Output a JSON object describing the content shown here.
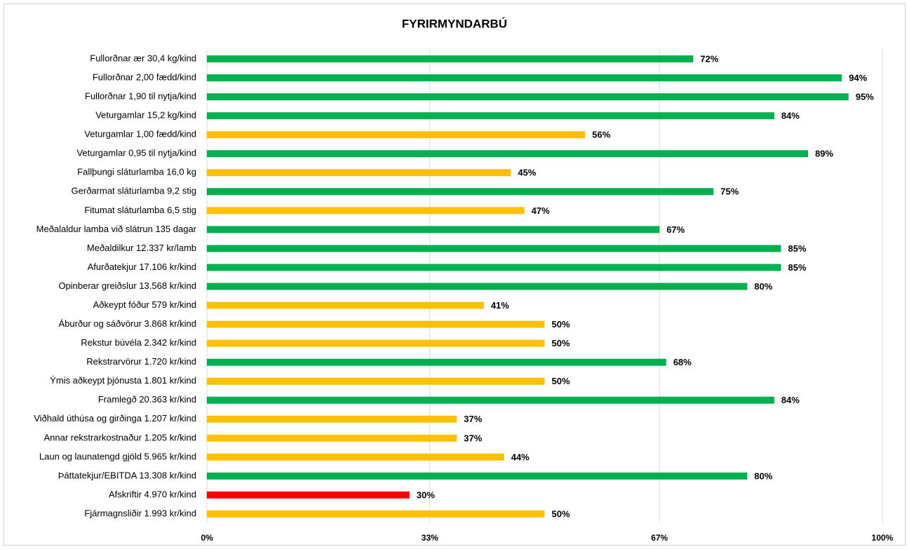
{
  "chart_data": {
    "type": "barh",
    "title": "FYRIRMYNDARBÚ",
    "categories": [
      "Fullorðnar ær 30,4 kg/kind",
      "Fullorðnar 2,00 fædd/kind",
      "Fullorðnar 1,90 til nytja/kind",
      "Veturgamlar 15,2 kg/kind",
      "Veturgamlar 1,00 fædd/kind",
      "Veturgamlar 0,95 til nytja/kind",
      "Fallþungi sláturlamba 16,0 kg",
      "Gerðarmat sláturlamba 9,2 stig",
      "Fitumat sláturlamba 6,5 stig",
      "Meðalaldur lamba við slátrun 135 dagar",
      "Meðaldilkur 12.337 kr/lamb",
      "Afurðatekjur 17.106 kr/kind",
      "Opinberar greiðslur 13.568 kr/kind",
      "Aðkeypt fóður 579 kr/kind",
      "Áburður og sáðvörur 3.868 kr/kind",
      "Rekstur búvéla 2.342 kr/kind",
      "Rekstrarvörur 1.720 kr/kind",
      "Ýmis aðkeypt þjónusta 1.801 kr/kind",
      "Framlegð 20.363 kr/kind",
      "Viðhald úthúsa og girðinga 1.207 kr/kind",
      "Annar rekstrarkostnaður 1.205 kr/kind",
      "Laun og launatengd gjöld 5.965 kr/kind",
      "Þáttatekjur/EBITDA 13.308 kr/kind",
      "Afskriftir 4.970 kr/kind",
      "Fjármagnsliðir 1.993 kr/kind"
    ],
    "values": [
      72,
      94,
      95,
      84,
      56,
      89,
      45,
      75,
      47,
      67,
      85,
      85,
      80,
      41,
      50,
      50,
      68,
      50,
      84,
      37,
      37,
      44,
      80,
      30,
      50
    ],
    "value_labels": [
      "72%",
      "94%",
      "95%",
      "84%",
      "56%",
      "89%",
      "45%",
      "75%",
      "47%",
      "67%",
      "85%",
      "85%",
      "80%",
      "41%",
      "50%",
      "50%",
      "68%",
      "50%",
      "84%",
      "37%",
      "37%",
      "44%",
      "80%",
      "30%",
      "50%"
    ],
    "colors": [
      "#00b050",
      "#00b050",
      "#00b050",
      "#00b050",
      "#ffc000",
      "#00b050",
      "#ffc000",
      "#00b050",
      "#ffc000",
      "#00b050",
      "#00b050",
      "#00b050",
      "#00b050",
      "#ffc000",
      "#ffc000",
      "#ffc000",
      "#00b050",
      "#ffc000",
      "#00b050",
      "#ffc000",
      "#ffc000",
      "#ffc000",
      "#00b050",
      "#ff0000",
      "#ffc000"
    ],
    "xlim": [
      0,
      100
    ],
    "xticks": [
      {
        "value": 0,
        "label": "0%"
      },
      {
        "value": 33,
        "label": "33%"
      },
      {
        "value": 67,
        "label": "67%"
      },
      {
        "value": 100,
        "label": "100%"
      }
    ],
    "grid": true
  }
}
